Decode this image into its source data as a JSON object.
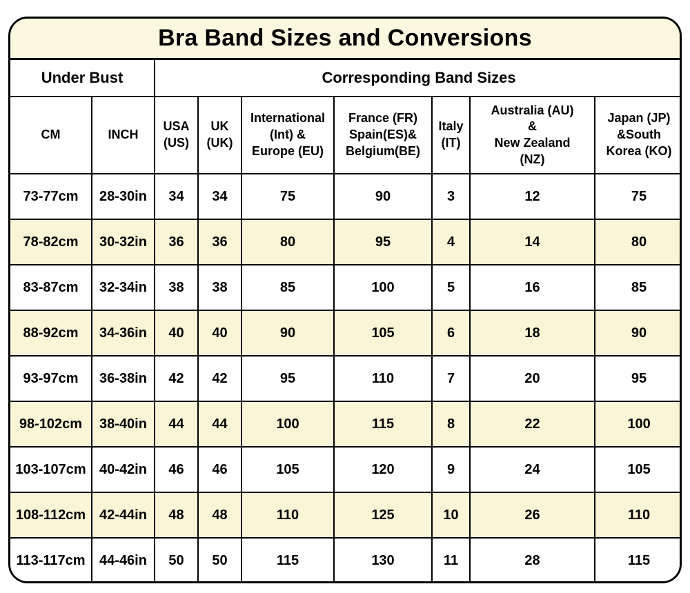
{
  "colors": {
    "title_bg": "#FBF8E1",
    "row_alt_bg": "#FAF5D6",
    "border": "#000000",
    "text": "#000000",
    "row_bg": "#FFFFFF"
  },
  "chart_data": {
    "type": "table",
    "title": "Bra Band Sizes and Conversions",
    "group_headers": [
      {
        "label": "Under Bust",
        "span": 2
      },
      {
        "label": "Corresponding Band Sizes",
        "span": 7
      }
    ],
    "columns": [
      "CM",
      "INCH",
      "USA\n(US)",
      "UK\n(UK)",
      "International\n(Int) &\nEurope (EU)",
      "France (FR)\nSpain(ES)&\nBelgium(BE)",
      "Italy\n(IT)",
      "Australia (AU)\n&\nNew Zealand\n(NZ)",
      "Japan (JP)\n&South\nKorea (KO)"
    ],
    "column_keys": [
      "cm",
      "inch",
      "usa",
      "uk",
      "int-eu",
      "fr-es-be",
      "italy",
      "au-nz",
      "jp-ko"
    ],
    "rows": [
      [
        "73-77cm",
        "28-30in",
        "34",
        "34",
        "75",
        "90",
        "3",
        "12",
        "75"
      ],
      [
        "78-82cm",
        "30-32in",
        "36",
        "36",
        "80",
        "95",
        "4",
        "14",
        "80"
      ],
      [
        "83-87cm",
        "32-34in",
        "38",
        "38",
        "85",
        "100",
        "5",
        "16",
        "85"
      ],
      [
        "88-92cm",
        "34-36in",
        "40",
        "40",
        "90",
        "105",
        "6",
        "18",
        "90"
      ],
      [
        "93-97cm",
        "36-38in",
        "42",
        "42",
        "95",
        "110",
        "7",
        "20",
        "95"
      ],
      [
        "98-102cm",
        "38-40in",
        "44",
        "44",
        "100",
        "115",
        "8",
        "22",
        "100"
      ],
      [
        "103-107cm",
        "40-42in",
        "46",
        "46",
        "105",
        "120",
        "9",
        "24",
        "105"
      ],
      [
        "108-112cm",
        "42-44in",
        "48",
        "48",
        "110",
        "125",
        "10",
        "26",
        "110"
      ],
      [
        "113-117cm",
        "44-46in",
        "50",
        "50",
        "115",
        "130",
        "11",
        "28",
        "115"
      ]
    ],
    "layout": {
      "striping": "alternate data rows shaded cream, starting with second row",
      "grid": "on"
    }
  }
}
